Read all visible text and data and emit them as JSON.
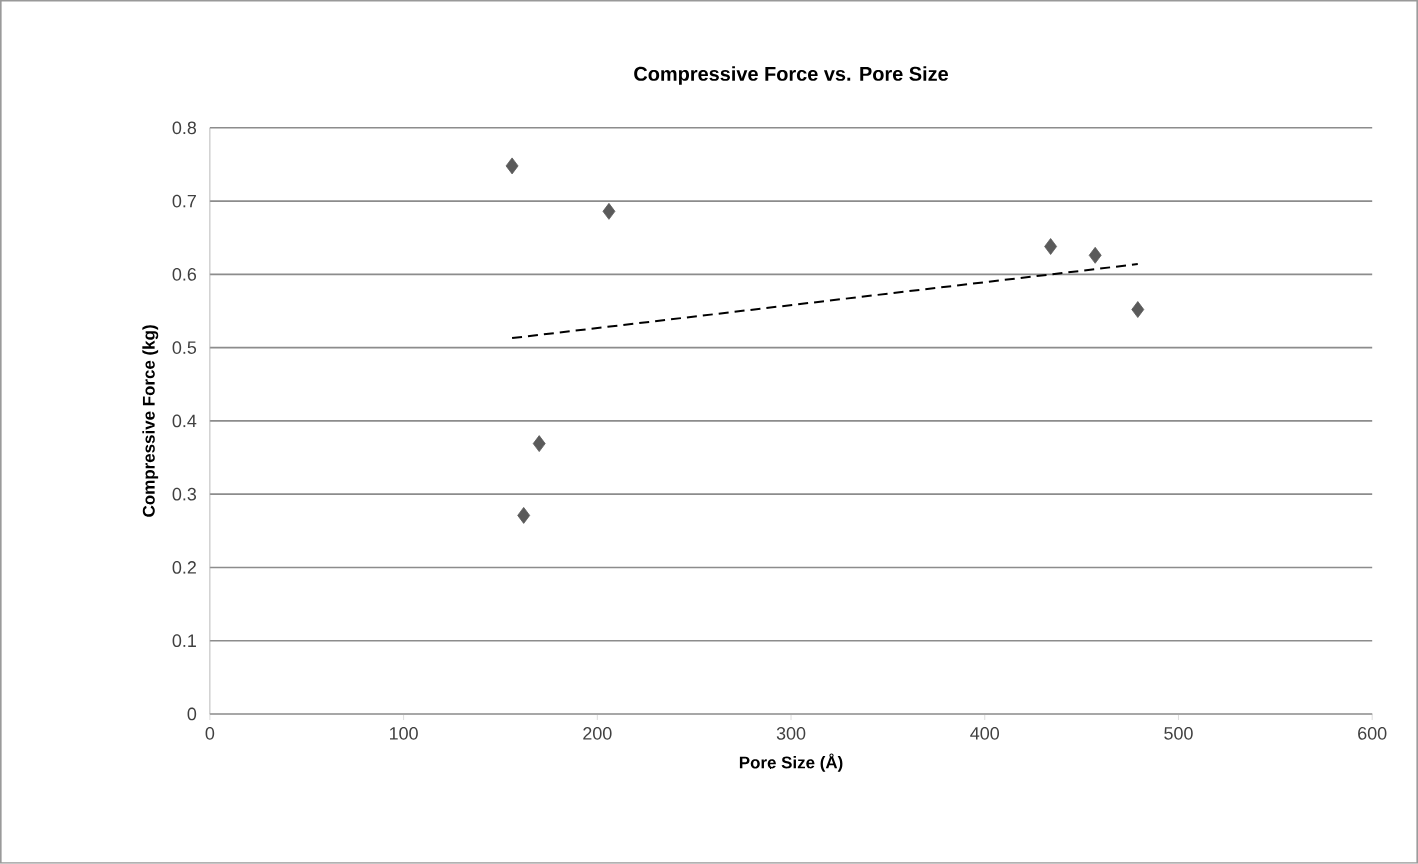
{
  "chart_data": {
    "type": "scatter",
    "title": "Compressive Force vs. Pore Size",
    "xlabel": "Pore Size (Å)",
    "ylabel": "Compressive Force (kg)",
    "x": [
      156,
      162,
      170,
      206,
      434,
      457,
      479
    ],
    "series": [
      {
        "color": "#5a5a5a",
        "values": [
          0.748,
          0.271,
          0.369,
          0.686,
          0.638,
          0.626,
          0.552
        ],
        "marker": "diamond"
      },
      {
        "type": "line",
        "color": "#000000",
        "x": [
          156,
          479
        ],
        "values": [
          0.513,
          0.614
        ],
        "line_style": "dashed",
        "marker": "none"
      }
    ],
    "xlim": [
      0,
      600
    ],
    "xticks": [
      0,
      100,
      200,
      300,
      400,
      500,
      600
    ],
    "ylim": [
      0,
      0.8
    ],
    "yticks": [
      0,
      0.1,
      0.2,
      0.3,
      0.4,
      0.5,
      0.6,
      0.7,
      0.8
    ],
    "grid": "y"
  }
}
